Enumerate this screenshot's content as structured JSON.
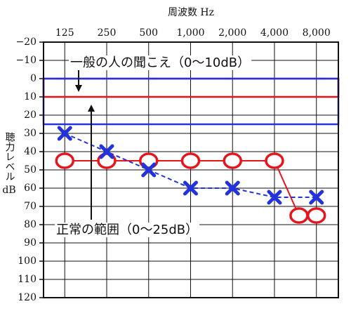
{
  "chart_data": {
    "type": "line",
    "title": "周波数 Hz",
    "y_label": "聴力レベル",
    "y_unit": "dB",
    "x_scale": "log",
    "xlim": [
      88,
      11500
    ],
    "xticks": [
      125,
      250,
      500,
      {
        "value": 1000,
        "label": "1,000"
      },
      {
        "value": 2000,
        "label": "2,000"
      },
      {
        "value": 4000,
        "label": "4,000"
      },
      {
        "value": 8000,
        "label": "8,000"
      }
    ],
    "ylim": [
      -20,
      120
    ],
    "y_reversed": true,
    "yticks": [
      {
        "value": -20,
        "label": "−20"
      },
      {
        "value": -10,
        "label": "−10"
      },
      0,
      10,
      20,
      30,
      40,
      50,
      60,
      70,
      80,
      90,
      100,
      110,
      120
    ],
    "grid": true,
    "bands": [
      {
        "label": "一般の人の聞こえ（0～10dB）",
        "from": 0,
        "to": 10,
        "color": "#e8141c"
      },
      {
        "label": "正常の範囲（0～25dB）",
        "from": 0,
        "to": 25,
        "color": "#2233dd"
      }
    ],
    "series": [
      {
        "marker": "o",
        "color": "#e8141c",
        "dash": false,
        "x": [
          125,
          250,
          500,
          1000,
          2000,
          4000,
          6000,
          8000
        ],
        "values": [
          45,
          45,
          45,
          45,
          45,
          45,
          75,
          75
        ]
      },
      {
        "marker": "x",
        "color": "#2233dd",
        "dash": true,
        "x": [
          125,
          250,
          500,
          1000,
          2000,
          4000,
          8000
        ],
        "values": [
          30,
          40,
          50,
          60,
          60,
          65,
          65
        ]
      }
    ]
  }
}
